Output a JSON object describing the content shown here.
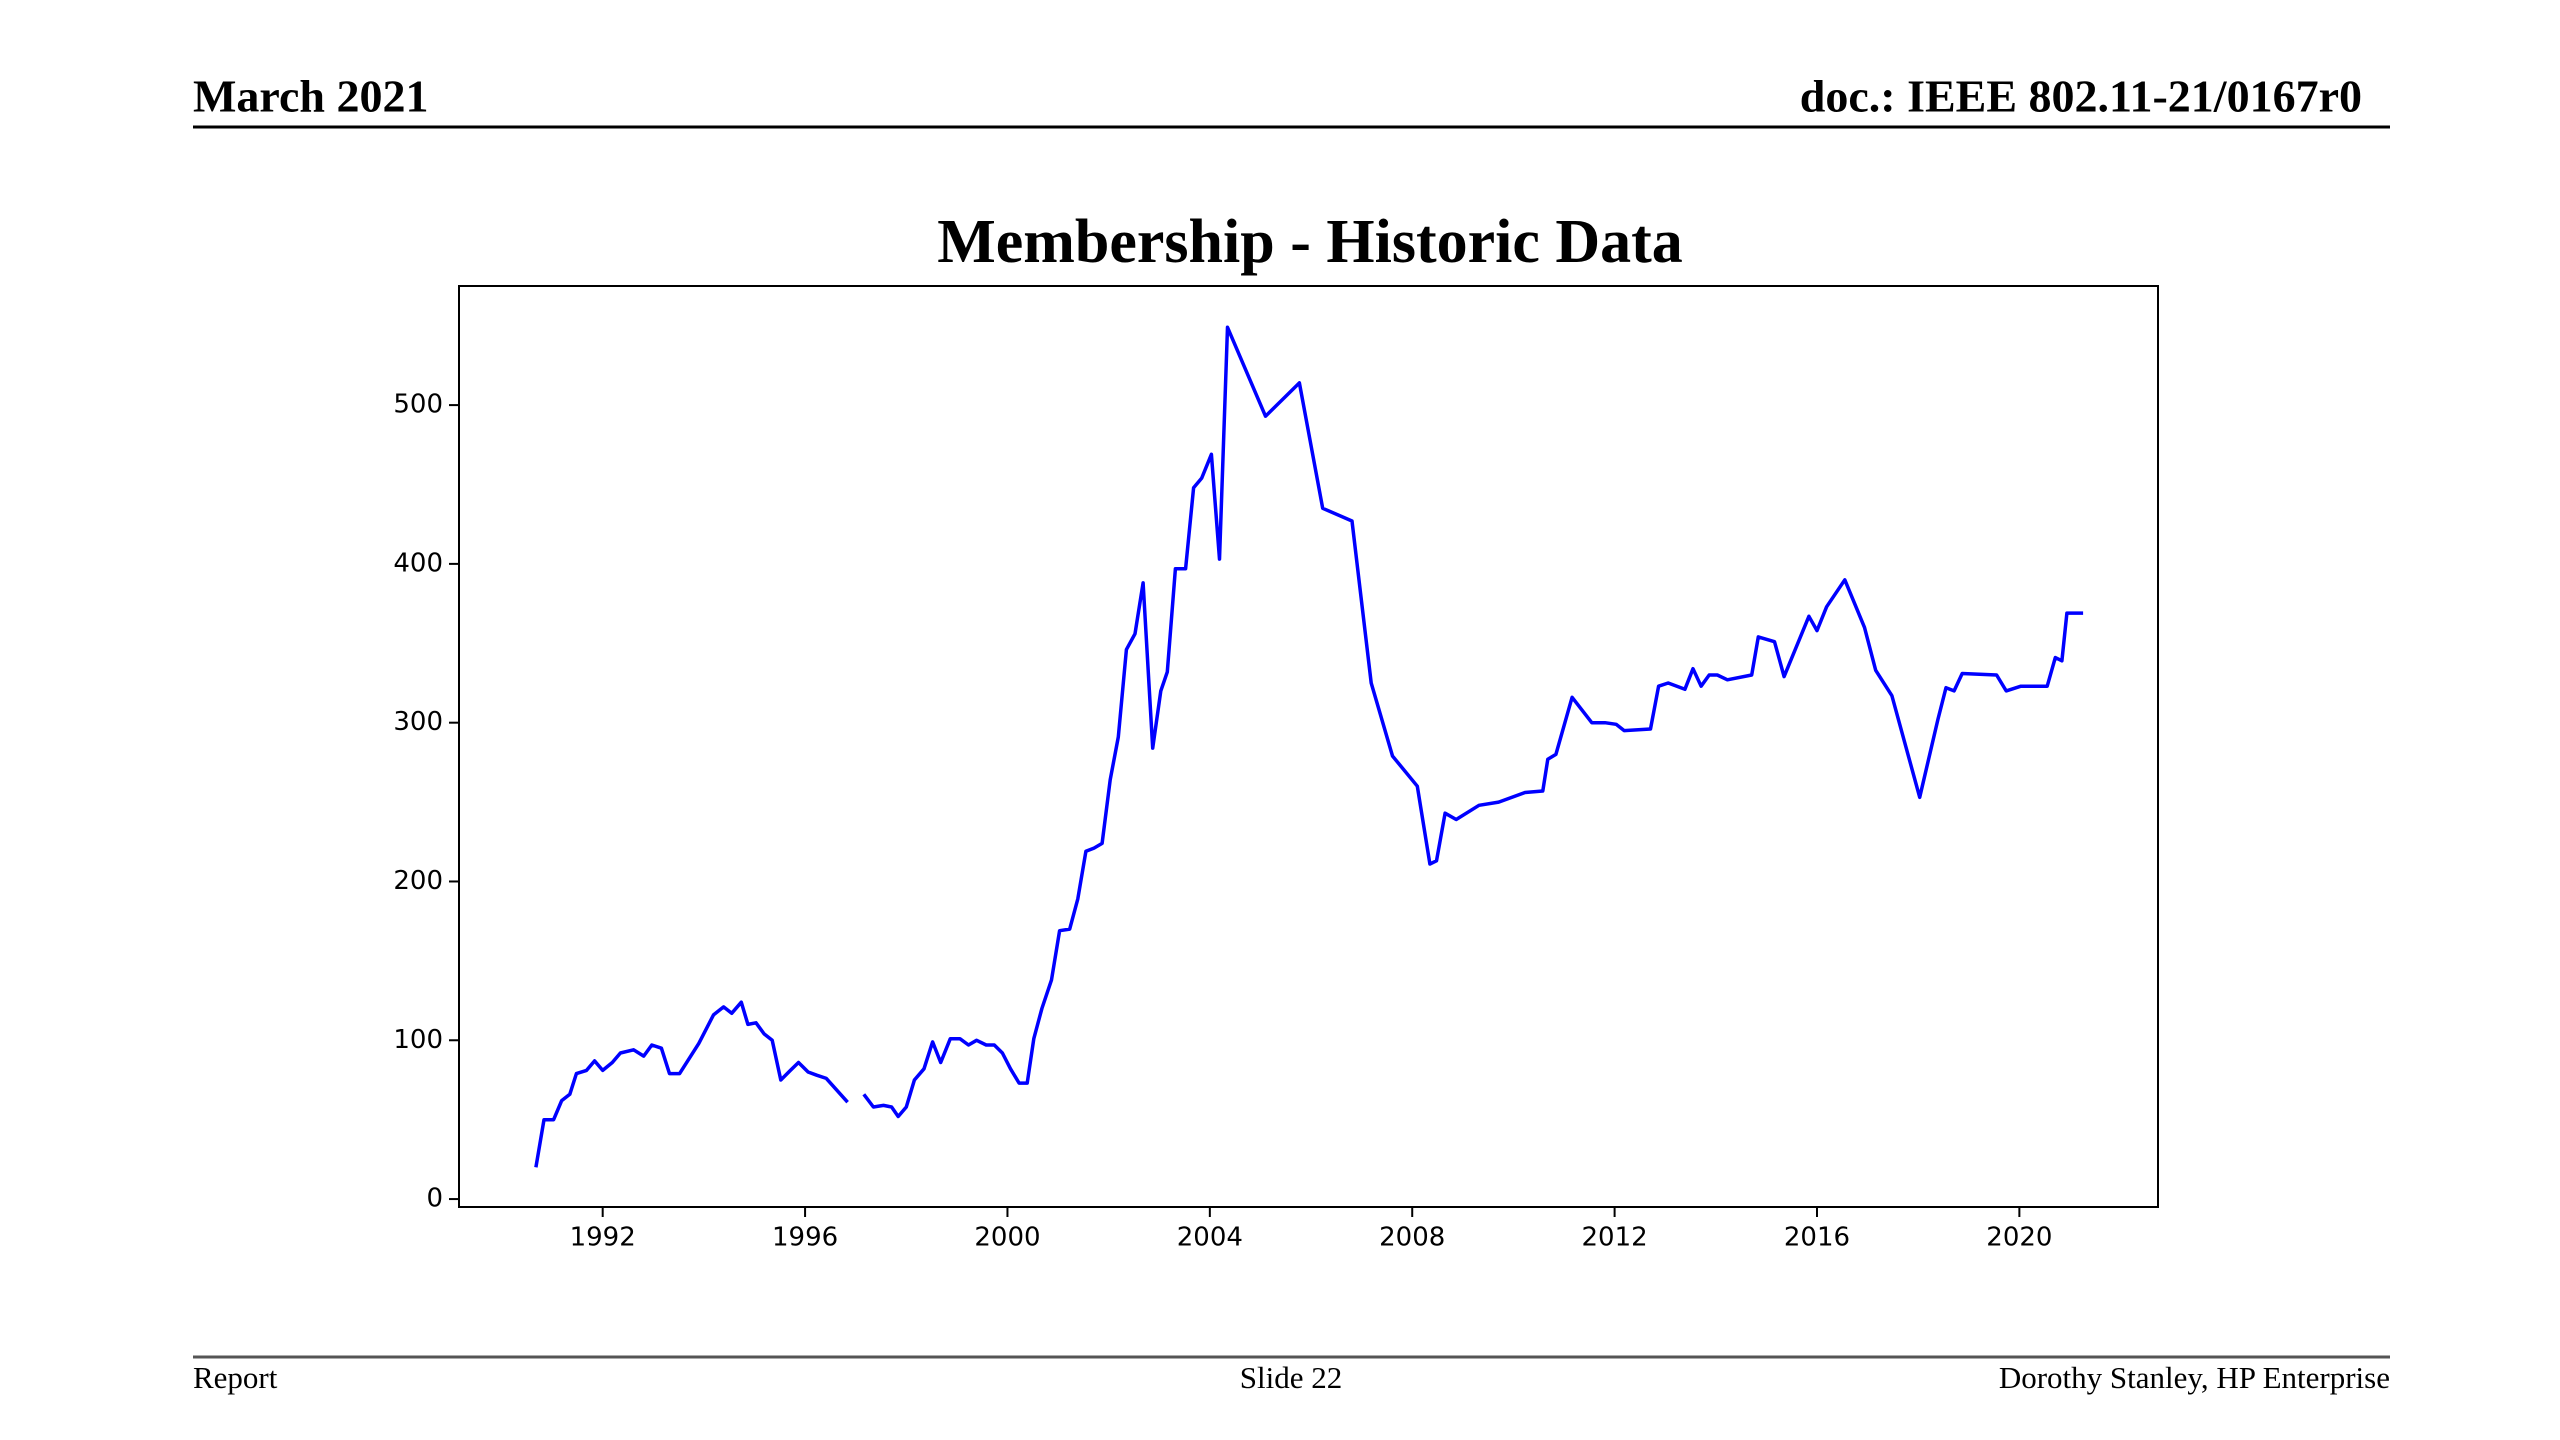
{
  "header": {
    "left": "March 2021",
    "right": "doc.: IEEE 802.11-21/0167r0"
  },
  "footer": {
    "left": "Report",
    "center": "Slide 22",
    "right": "Dorothy Stanley, HP Enterprise"
  },
  "chart_data": {
    "type": "line",
    "title": "Membership - Historic Data",
    "x": [
      1990.68,
      1990.84,
      1991.03,
      1991.19,
      1991.35,
      1991.48,
      1991.68,
      1991.84,
      1992.0,
      1992.19,
      1992.35,
      1992.61,
      1992.81,
      1992.97,
      1993.16,
      1993.32,
      1993.52,
      1993.9,
      1994.19,
      1994.39,
      1994.55,
      1994.74,
      1994.87,
      1995.03,
      1995.19,
      1995.35,
      1995.52,
      1995.71,
      1995.87,
      1996.06,
      1996.23,
      1996.42,
      1996.84,
      null,
      1997.16,
      1997.35,
      1997.55,
      1997.71,
      1997.84,
      1998.0,
      1998.16,
      1998.35,
      1998.52,
      1998.68,
      1998.87,
      1999.06,
      1999.23,
      1999.39,
      1999.58,
      1999.74,
      1999.9,
      2000.06,
      2000.23,
      2000.39,
      2000.52,
      2000.68,
      2000.87,
      2001.03,
      2001.23,
      2001.39,
      2001.55,
      2001.71,
      2001.87,
      2002.03,
      2002.19,
      2002.35,
      2002.52,
      2002.68,
      2002.87,
      2003.03,
      2003.16,
      2003.32,
      2003.52,
      2003.68,
      2003.84,
      2004.03,
      2004.19,
      2004.35,
      2005.1,
      2005.77,
      2006.23,
      2006.81,
      2007.19,
      2007.61,
      2008.1,
      2008.35,
      2008.48,
      2008.65,
      2008.87,
      2009.32,
      2009.71,
      2010.23,
      2010.58,
      2010.68,
      2010.84,
      2011.16,
      2011.55,
      2011.81,
      2012.03,
      2012.19,
      2012.71,
      2012.87,
      2013.06,
      2013.39,
      2013.55,
      2013.71,
      2013.87,
      2014.03,
      2014.23,
      2014.71,
      2014.84,
      2015.16,
      2015.35,
      2015.84,
      2016.0,
      2016.19,
      2016.55,
      2016.94,
      2017.16,
      2017.48,
      2018.03,
      2018.39,
      2018.55,
      2018.71,
      2018.87,
      2019.55,
      2019.74,
      2020.03,
      2020.55,
      2020.71,
      2020.84,
      2020.94,
      2021.26
    ],
    "series": [
      {
        "color": "#0000ff",
        "values": [
          20,
          50,
          50,
          62,
          66,
          79,
          81,
          87,
          81,
          86,
          92,
          94,
          90,
          97,
          95,
          79,
          79,
          98,
          116,
          121,
          117,
          124,
          110,
          111,
          104,
          100,
          75,
          81,
          86,
          80,
          78,
          76,
          61,
          null,
          66,
          58,
          59,
          58,
          52,
          58,
          75,
          82,
          99,
          86,
          101,
          101,
          97,
          100,
          97,
          97,
          92,
          82,
          73,
          73,
          101,
          120,
          138,
          169,
          170,
          189,
          219,
          221,
          224,
          264,
          291,
          346,
          356,
          388,
          284,
          320,
          332,
          397,
          397,
          448,
          454,
          469,
          403,
          549,
          493,
          514,
          435,
          427,
          325,
          279,
          260,
          211,
          213,
          243,
          239,
          248,
          250,
          256,
          257,
          277,
          280,
          316,
          300,
          300,
          299,
          295,
          296,
          323,
          325,
          321,
          334,
          323,
          330,
          330,
          327,
          330,
          354,
          351,
          329,
          367,
          358,
          373,
          390,
          360,
          333,
          317,
          253,
          302,
          322,
          320,
          331,
          330,
          320,
          323,
          323,
          341,
          339,
          369,
          369
        ]
      }
    ],
    "xlim": [
      1989.16,
      2022.74
    ],
    "ylim": [
      -5,
      575
    ],
    "xticks": [
      1992,
      1996,
      2000,
      2004,
      2008,
      2012,
      2016,
      2020
    ],
    "yticks": [
      0,
      100,
      200,
      300,
      400,
      500
    ]
  }
}
